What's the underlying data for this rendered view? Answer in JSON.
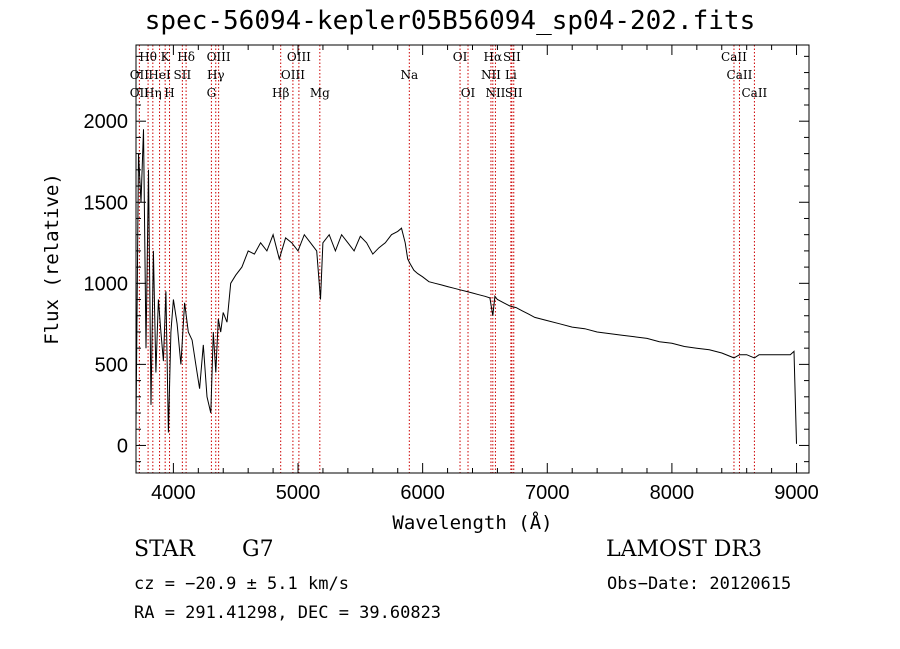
{
  "chart_data": {
    "type": "line",
    "title": "spec-56094-kepler05B56094_sp04-202.fits",
    "xlabel": "Wavelength (Å)",
    "ylabel": "Flux (relative)",
    "xlim": [
      3700,
      9100
    ],
    "ylim": [
      -170,
      2470
    ],
    "xticks": [
      4000,
      5000,
      6000,
      7000,
      8000,
      9000
    ],
    "yticks": [
      0,
      500,
      1000,
      1500,
      2000
    ],
    "series": [
      {
        "name": "flux",
        "x": [
          3700,
          3720,
          3740,
          3760,
          3780,
          3800,
          3820,
          3840,
          3860,
          3880,
          3900,
          3920,
          3940,
          3960,
          3980,
          4000,
          4030,
          4060,
          4090,
          4120,
          4150,
          4180,
          4210,
          4240,
          4270,
          4300,
          4320,
          4340,
          4360,
          4380,
          4400,
          4430,
          4460,
          4500,
          4550,
          4600,
          4650,
          4700,
          4750,
          4800,
          4850,
          4900,
          4950,
          5000,
          5050,
          5100,
          5150,
          5180,
          5200,
          5250,
          5300,
          5350,
          5400,
          5450,
          5500,
          5550,
          5600,
          5650,
          5700,
          5750,
          5800,
          5830,
          5860,
          5880,
          5900,
          5930,
          5960,
          6000,
          6050,
          6100,
          6150,
          6200,
          6250,
          6300,
          6350,
          6400,
          6450,
          6500,
          6540,
          6563,
          6580,
          6600,
          6650,
          6700,
          6750,
          6800,
          6850,
          6900,
          7000,
          7100,
          7200,
          7300,
          7400,
          7500,
          7600,
          7700,
          7800,
          7900,
          8000,
          8100,
          8200,
          8300,
          8400,
          8498,
          8542,
          8600,
          8662,
          8700,
          8800,
          8900,
          8950,
          8980,
          9000
        ],
        "y": [
          120,
          1800,
          1500,
          1950,
          600,
          1700,
          250,
          1200,
          450,
          900,
          700,
          520,
          950,
          80,
          700,
          900,
          750,
          500,
          880,
          700,
          650,
          500,
          350,
          620,
          300,
          200,
          700,
          450,
          780,
          700,
          820,
          760,
          1000,
          1050,
          1100,
          1200,
          1180,
          1250,
          1200,
          1300,
          1150,
          1280,
          1250,
          1200,
          1300,
          1250,
          1200,
          900,
          1250,
          1300,
          1200,
          1300,
          1250,
          1200,
          1290,
          1250,
          1180,
          1220,
          1250,
          1300,
          1320,
          1340,
          1250,
          1150,
          1120,
          1080,
          1060,
          1040,
          1010,
          1000,
          990,
          980,
          970,
          960,
          950,
          940,
          930,
          920,
          910,
          800,
          920,
          900,
          880,
          860,
          850,
          830,
          810,
          790,
          770,
          750,
          730,
          720,
          700,
          690,
          680,
          670,
          660,
          640,
          630,
          610,
          600,
          590,
          570,
          540,
          560,
          560,
          540,
          560,
          560,
          560,
          560,
          580,
          10
        ]
      }
    ],
    "lines": [
      {
        "label": "Hθ",
        "x": 3797,
        "row": 0
      },
      {
        "label": "OII",
        "x": 3727,
        "row": 1
      },
      {
        "label": "OII",
        "x": 3727,
        "row": 2
      },
      {
        "label": "Hη",
        "x": 3835,
        "row": 2
      },
      {
        "label": "HeI",
        "x": 3889,
        "row": 1
      },
      {
        "label": "K",
        "x": 3934,
        "row": 0
      },
      {
        "label": "SII",
        "x": 4072,
        "row": 1
      },
      {
        "label": "H",
        "x": 3969,
        "row": 2
      },
      {
        "label": "Hδ",
        "x": 4102,
        "row": 0
      },
      {
        "label": "OIII",
        "x": 4363,
        "row": 0
      },
      {
        "label": "Hγ",
        "x": 4340,
        "row": 1
      },
      {
        "label": "G",
        "x": 4305,
        "row": 2
      },
      {
        "label": "OIII",
        "x": 5007,
        "row": 0
      },
      {
        "label": "OIII",
        "x": 4959,
        "row": 1
      },
      {
        "label": "Hβ",
        "x": 4861,
        "row": 2
      },
      {
        "label": "Mg",
        "x": 5175,
        "row": 2
      },
      {
        "label": "Na",
        "x": 5893,
        "row": 1
      },
      {
        "label": "OI",
        "x": 6300,
        "row": 0
      },
      {
        "label": "OI",
        "x": 6364,
        "row": 2
      },
      {
        "label": "Hα",
        "x": 6563,
        "row": 0
      },
      {
        "label": "SII",
        "x": 6716,
        "row": 0
      },
      {
        "label": "NII",
        "x": 6548,
        "row": 1
      },
      {
        "label": "Li",
        "x": 6708,
        "row": 1
      },
      {
        "label": "NII",
        "x": 6584,
        "row": 2
      },
      {
        "label": "SII",
        "x": 6731,
        "row": 2
      },
      {
        "label": "CaII",
        "x": 8498,
        "row": 0
      },
      {
        "label": "CaII",
        "x": 8542,
        "row": 1
      },
      {
        "label": "CaII",
        "x": 8662,
        "row": 2
      }
    ]
  },
  "info": {
    "class": "STAR",
    "subclass": "G7",
    "survey": "LAMOST DR3",
    "cz": "cz = −20.9 ± 5.1 km/s",
    "obsdate": "Obs−Date: 20120615",
    "radec": "RA = 291.41298, DEC =  39.60823"
  },
  "colors": {
    "line": "#000000",
    "marker": "#cc0000"
  }
}
